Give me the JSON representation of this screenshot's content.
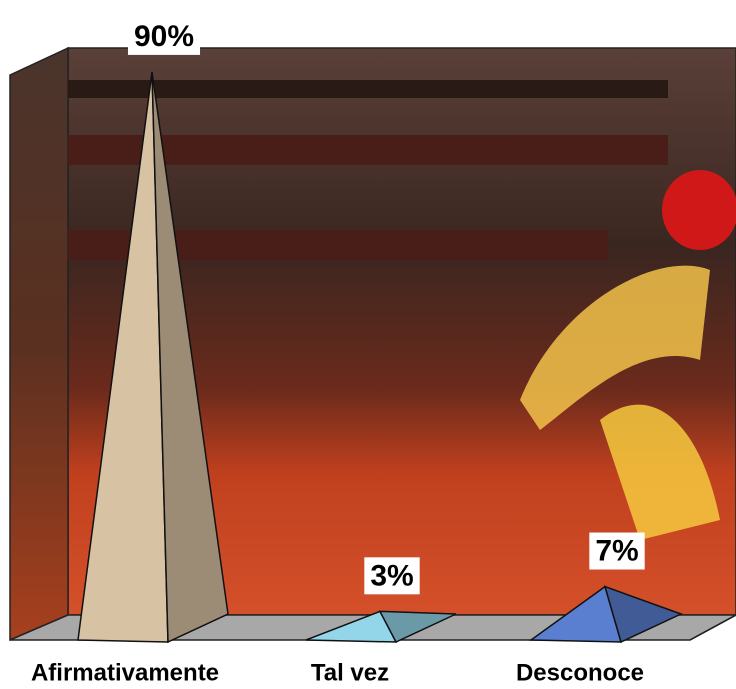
{
  "chart_data": {
    "type": "pyramid",
    "categories": [
      "Afirmativamente",
      "Tal vez",
      "Desconoce"
    ],
    "values": [
      90,
      3,
      7
    ],
    "value_labels": [
      "90%",
      "3%",
      "7%"
    ],
    "colors": [
      "#d8c2a4",
      "#93d6ea",
      "#5a7fd0"
    ],
    "ylim": [
      0,
      100
    ]
  }
}
